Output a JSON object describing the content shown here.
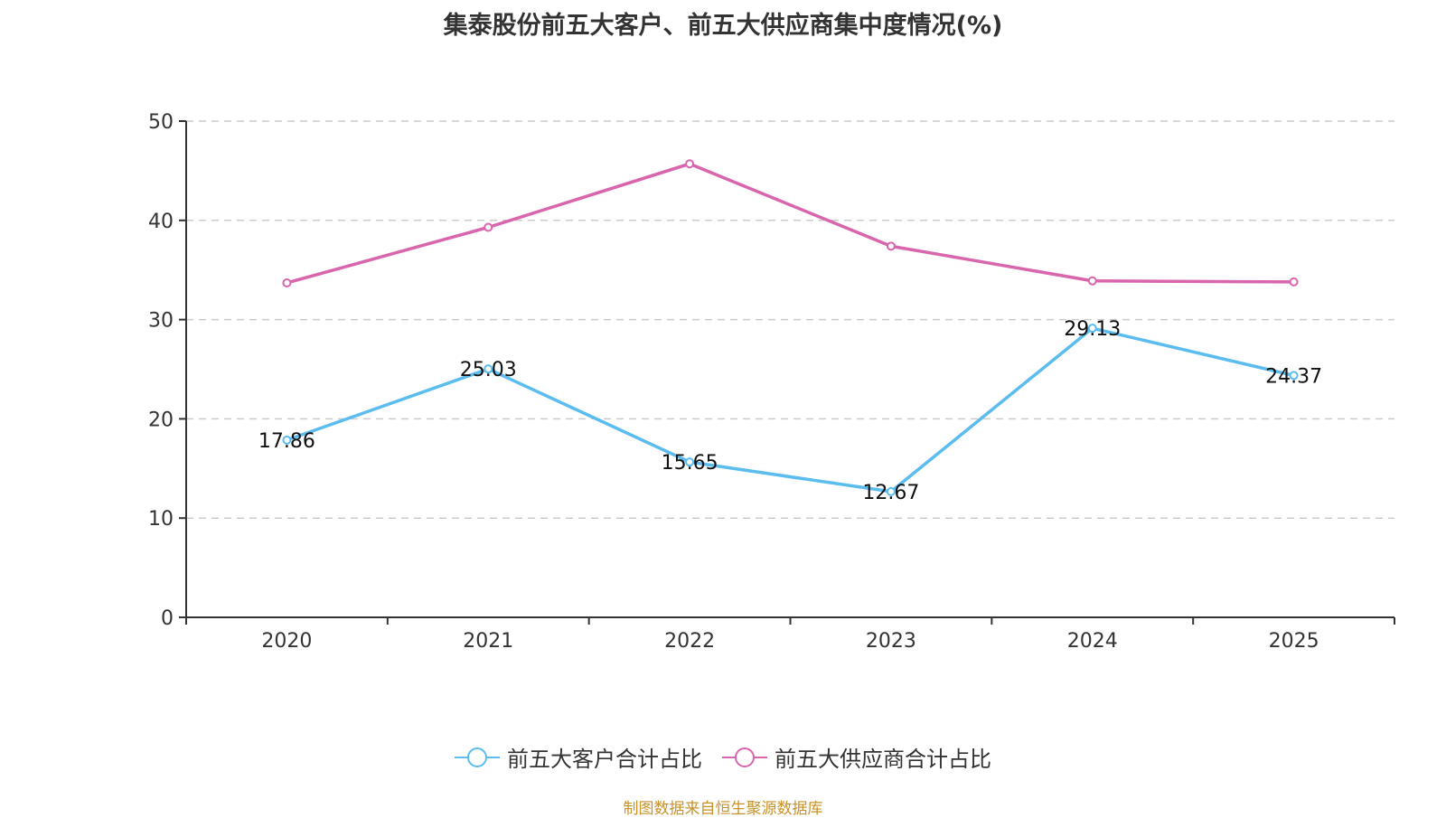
{
  "chart_data": {
    "type": "line",
    "title": "集泰股份前五大客户、前五大供应商集中度情况(%)",
    "categories": [
      "2020",
      "2021",
      "2022",
      "2023",
      "2024",
      "2025"
    ],
    "ylim": [
      0,
      50
    ],
    "yticks": [
      "0",
      "10",
      "20",
      "30",
      "40",
      "50"
    ],
    "grid": true,
    "legend_position": "bottom",
    "series": [
      {
        "name": "前五大客户合计占比",
        "color": "#5bbcf0",
        "values": [
          17.86,
          25.03,
          15.65,
          12.67,
          29.13,
          24.37
        ],
        "labels": [
          "17.86",
          "25.03",
          "15.65",
          "12.67",
          "29.13",
          "24.37"
        ],
        "show_labels": true
      },
      {
        "name": "前五大供应商合计占比",
        "color": "#d966ad",
        "values": [
          33.7,
          39.3,
          45.7,
          37.4,
          33.9,
          33.8
        ],
        "show_labels": false
      }
    ]
  },
  "source": "制图数据来自恒生聚源数据库"
}
